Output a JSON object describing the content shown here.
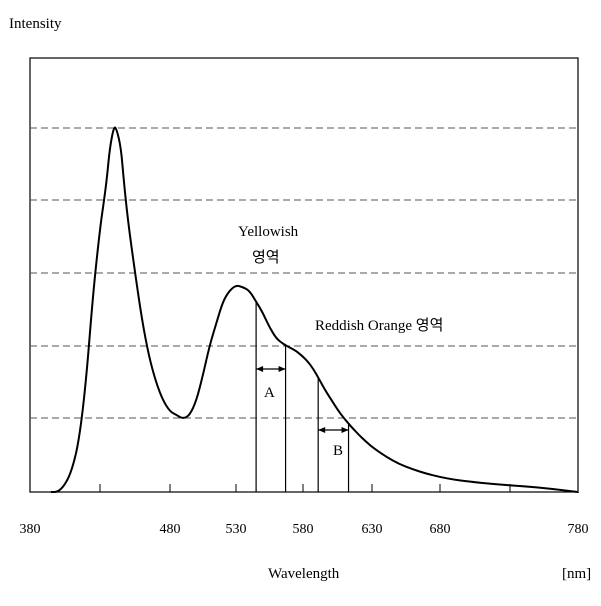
{
  "chart_data": {
    "type": "line",
    "ylabel": "Intensity",
    "xlabel": "Wavelength",
    "xunit": "[nm]",
    "xlim": [
      380,
      780
    ],
    "ylim": [
      0,
      1
    ],
    "x_ticks": [
      380,
      480,
      530,
      580,
      630,
      680,
      780
    ],
    "grid": "horizontal dashed",
    "series": [
      {
        "x": [
          395,
          400,
          405,
          410,
          415,
          420,
          425,
          430,
          433,
          435,
          437,
          440,
          442,
          445,
          447,
          450,
          455,
          460,
          465,
          470,
          475,
          480,
          485,
          490,
          495,
          500,
          505,
          510,
          515,
          520,
          525,
          530,
          535,
          540,
          545,
          550,
          555,
          560,
          565,
          570,
          575,
          580,
          585,
          590,
          595,
          600,
          605,
          610,
          615,
          620,
          625,
          630,
          640,
          650,
          660,
          670,
          680,
          690,
          700,
          720,
          740,
          760,
          780
        ],
        "y": [
          0.0,
          0.0,
          0.02,
          0.06,
          0.14,
          0.3,
          0.54,
          0.72,
          0.8,
          0.86,
          0.94,
          1.0,
          0.99,
          0.94,
          0.85,
          0.74,
          0.6,
          0.47,
          0.37,
          0.3,
          0.25,
          0.22,
          0.21,
          0.2,
          0.21,
          0.25,
          0.32,
          0.4,
          0.46,
          0.52,
          0.55,
          0.565,
          0.56,
          0.55,
          0.52,
          0.49,
          0.45,
          0.42,
          0.405,
          0.395,
          0.385,
          0.37,
          0.35,
          0.32,
          0.285,
          0.255,
          0.225,
          0.2,
          0.178,
          0.158,
          0.14,
          0.123,
          0.097,
          0.076,
          0.062,
          0.05,
          0.041,
          0.034,
          0.029,
          0.021,
          0.016,
          0.009,
          0.0
        ]
      }
    ],
    "annotations": [
      {
        "text_line1": "Yellowish",
        "text_line2": "영역"
      },
      {
        "text": "Reddish Orange 영역"
      },
      {
        "label": "A",
        "x_range": [
          545,
          567
        ]
      },
      {
        "label": "B",
        "x_range": [
          591,
          613
        ]
      }
    ]
  }
}
